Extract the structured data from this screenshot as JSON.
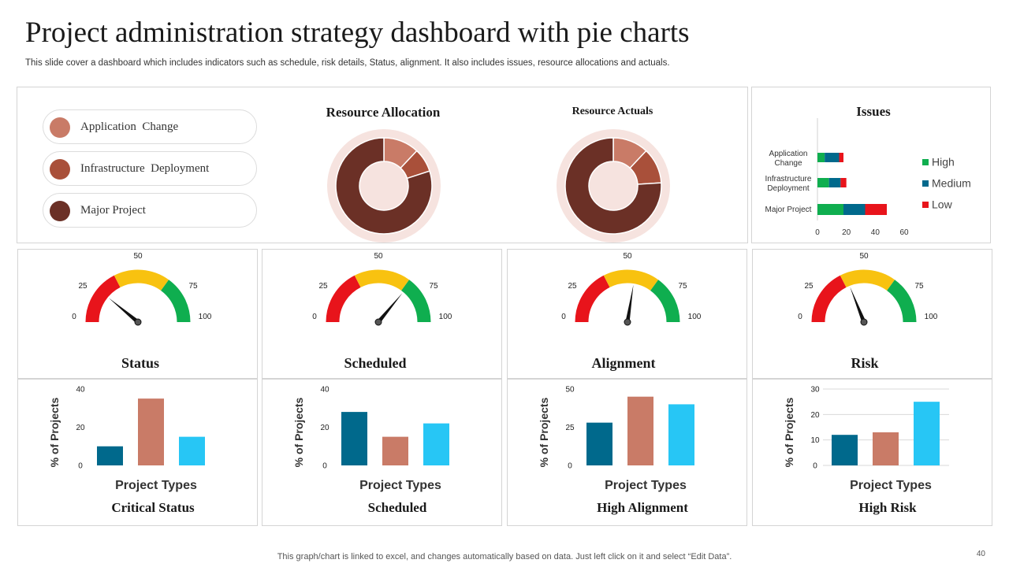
{
  "title": "Project administration strategy dashboard with pie charts",
  "subtitle": "This slide cover a dashboard which includes indicators such as schedule, risk details, Status, alignment. It also includes issues, resource allocations and actuals.",
  "footer": "This graph/chart is linked to excel,  and changes automatically based on data. Just left click on it and select “Edit Data”.",
  "page_number": "40",
  "legend_items": [
    {
      "label": "Application  Change",
      "color": "#C97B67"
    },
    {
      "label": "Infrastructure  Deployment",
      "color": "#A9503A"
    },
    {
      "label": "Major Project",
      "color": "#6B3026"
    }
  ],
  "gauge_labels": {
    "l0": "0",
    "l25": "25",
    "l50": "50",
    "l75": "75",
    "l100": "100"
  },
  "gauge_titles": [
    "Status",
    "Scheduled",
    "Alignment",
    "Risk"
  ],
  "colors": {
    "red": "#E8141B",
    "yellow": "#F8C210",
    "green": "#0FAE4F",
    "teal": "#00698C",
    "salmon": "#C97B67",
    "cyan": "#27C6F5",
    "pie_ring": "#F6E3DF"
  },
  "chart_data": [
    {
      "type": "pie",
      "title": "Resource Allocation",
      "categories": [
        "Application  Change",
        "Infrastructure  Deployment",
        "Major Project"
      ],
      "values": [
        12,
        8,
        80
      ]
    },
    {
      "type": "pie",
      "title": "Resource Actuals",
      "categories": [
        "Application  Change",
        "Infrastructure  Deployment",
        "Major Project"
      ],
      "values": [
        12,
        12,
        76
      ]
    },
    {
      "type": "bar",
      "orientation": "horizontal",
      "stacked": true,
      "title": "Issues",
      "categories": [
        "Application\nChange",
        "Infrastructure\nDeployment",
        "Major Project"
      ],
      "series": [
        {
          "name": "High",
          "values": [
            5,
            8,
            18
          ],
          "color": "#0FAE4F"
        },
        {
          "name": "Medium",
          "values": [
            10,
            8,
            15
          ],
          "color": "#00698C"
        },
        {
          "name": "Low",
          "values": [
            3,
            4,
            15
          ],
          "color": "#E8141B"
        }
      ],
      "xticks": [
        0,
        20,
        40,
        60
      ],
      "xlim": [
        0,
        60
      ],
      "legend": "right"
    },
    {
      "type": "gauge",
      "title": "Status",
      "value": 22,
      "ticks": [
        "0",
        "25",
        "50",
        "75",
        "100"
      ]
    },
    {
      "type": "gauge",
      "title": "Scheduled",
      "value": 72,
      "ticks": [
        "0",
        "25",
        "50",
        "75",
        "100"
      ]
    },
    {
      "type": "gauge",
      "title": "Alignment",
      "value": 55,
      "ticks": [
        "0",
        "25",
        "50",
        "75",
        "100"
      ]
    },
    {
      "type": "gauge",
      "title": "Risk",
      "value": 38,
      "ticks": [
        "0",
        "25",
        "50",
        "75",
        "100"
      ]
    },
    {
      "type": "bar",
      "title": "Critical Status",
      "xlabel": "Project Types",
      "ylabel": "% of Projects",
      "values": [
        10,
        35,
        15
      ],
      "colors": [
        "#00698C",
        "#C97B67",
        "#27C6F5"
      ],
      "yticks": [
        0,
        20,
        40
      ],
      "ylim": [
        0,
        40
      ],
      "grid": false
    },
    {
      "type": "bar",
      "title": "Scheduled",
      "xlabel": "Project Types",
      "ylabel": "% of Projects",
      "values": [
        28,
        15,
        22
      ],
      "colors": [
        "#00698C",
        "#C97B67",
        "#27C6F5"
      ],
      "yticks": [
        0,
        20,
        40
      ],
      "ylim": [
        0,
        40
      ],
      "grid": false
    },
    {
      "type": "bar",
      "title": "High Alignment",
      "xlabel": "Project Types",
      "ylabel": "% of Projects",
      "values": [
        28,
        45,
        40
      ],
      "colors": [
        "#00698C",
        "#C97B67",
        "#27C6F5"
      ],
      "yticks": [
        0,
        25,
        50
      ],
      "ylim": [
        0,
        50
      ],
      "grid": false
    },
    {
      "type": "bar",
      "title": "High Risk",
      "xlabel": "Project Types",
      "ylabel": "% of Projects",
      "values": [
        12,
        13,
        25
      ],
      "colors": [
        "#00698C",
        "#C97B67",
        "#27C6F5"
      ],
      "yticks": [
        0,
        10,
        20,
        30
      ],
      "ylim": [
        0,
        30
      ],
      "grid": true
    }
  ]
}
